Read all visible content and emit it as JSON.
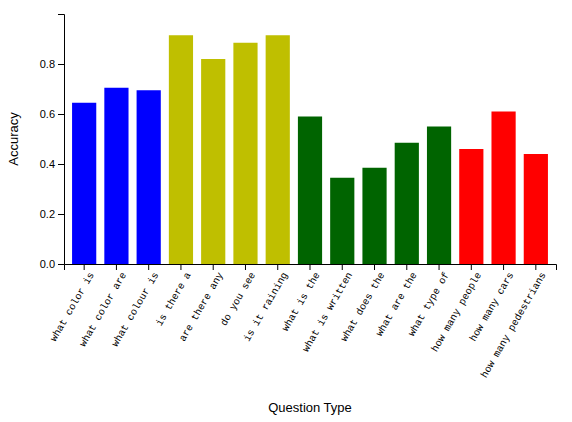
{
  "chart_data": {
    "type": "bar",
    "categories": [
      "what color is",
      "what color are",
      "what colour is",
      "is there a",
      "are there any",
      "do you see",
      "is it raining",
      "what is the",
      "what is written",
      "what does the",
      "what are the",
      "what type of",
      "how many people",
      "how many cars",
      "how many pedestrians"
    ],
    "values": [
      0.645,
      0.705,
      0.695,
      0.915,
      0.82,
      0.885,
      0.915,
      0.59,
      0.345,
      0.385,
      0.485,
      0.55,
      0.46,
      0.61,
      0.44
    ],
    "colors": [
      "#0000ff",
      "#0000ff",
      "#0000ff",
      "#bfbf00",
      "#bfbf00",
      "#bfbf00",
      "#bfbf00",
      "#006400",
      "#006400",
      "#006400",
      "#006400",
      "#006400",
      "#ff0000",
      "#ff0000",
      "#ff0000"
    ],
    "xlabel": "Question Type",
    "ylabel": "Accuracy",
    "ylim": [
      0.0,
      1.0
    ],
    "yticks": [
      {
        "value": 0,
        "label": "0.0"
      },
      0.2,
      0.4,
      0.6,
      0.8
    ]
  }
}
